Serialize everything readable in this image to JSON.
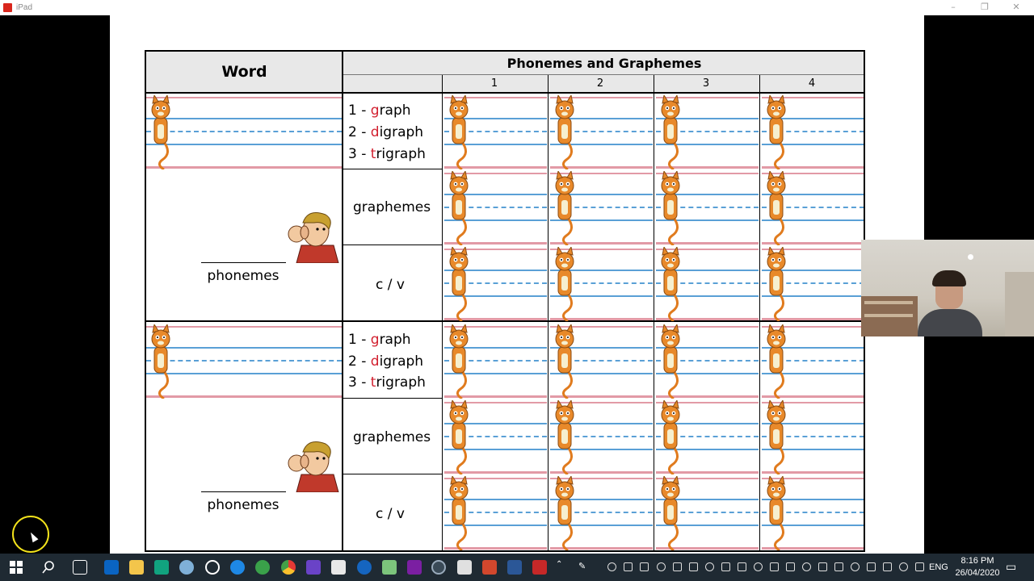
{
  "window": {
    "title": "iPad"
  },
  "worksheet": {
    "word_header": "Word",
    "pg_header": "Phonemes and Graphemes",
    "columns": [
      "1",
      "2",
      "3",
      "4"
    ],
    "block": {
      "graph_prefix": "1 - ",
      "graph_red": "g",
      "graph_rest": "raph",
      "digraph_prefix": "2 - ",
      "digraph_red": "d",
      "digraph_rest": "igraph",
      "trigraph_prefix": "3 - ",
      "trigraph_red": "t",
      "trigraph_rest": "rigraph",
      "graphemes": "graphemes",
      "cv": "c / v",
      "phonemes": "phonemes"
    }
  },
  "taskbar": {
    "lang": "ENG",
    "time": "8:16 PM",
    "date": "26/04/2020"
  },
  "colors": {
    "red_accent": "#d2202f",
    "taskbar": "#1f2a33",
    "header_grey": "#e8e8e8"
  }
}
